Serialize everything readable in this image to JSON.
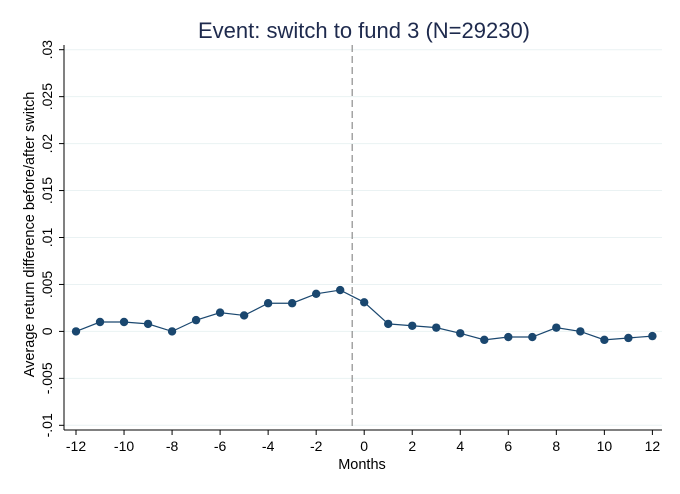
{
  "chart_data": {
    "type": "line",
    "title": "Event: switch to fund 3 (N=29230)",
    "xlabel": "Months",
    "ylabel": "Average return difference before/after switch",
    "xlim": [
      -12.5,
      12.4
    ],
    "ylim": [
      -0.0105,
      0.0305
    ],
    "x_ticks": [
      -12,
      -10,
      -8,
      -6,
      -4,
      -2,
      0,
      2,
      4,
      6,
      8,
      10,
      12
    ],
    "x_tick_labels": [
      "-12",
      "-10",
      "-8",
      "-6",
      "-4",
      "-2",
      "0",
      "2",
      "4",
      "6",
      "8",
      "10",
      "12"
    ],
    "y_ticks": [
      -0.01,
      -0.005,
      0,
      0.005,
      0.01,
      0.015,
      0.02,
      0.025,
      0.03
    ],
    "y_tick_labels": [
      "-.01",
      "-.005",
      "0",
      ".005",
      ".01",
      ".015",
      ".02",
      ".025",
      ".03"
    ],
    "grid": "horizontal",
    "event_line_x": -0.5,
    "series": [
      {
        "x": [
          -12,
          -11,
          -10,
          -9,
          -8,
          -7,
          -6,
          -5,
          -4,
          -3,
          -2,
          -1,
          0,
          1,
          2,
          3,
          4,
          5,
          6,
          7,
          8,
          9,
          10,
          11,
          12
        ],
        "values": [
          0.0,
          0.001,
          0.001,
          0.0008,
          0.0,
          0.0012,
          0.002,
          0.0017,
          0.003,
          0.003,
          0.004,
          0.0044,
          0.0031,
          0.0008,
          0.0006,
          0.0004,
          -0.0002,
          -0.0009,
          -0.0006,
          -0.0006,
          0.0004,
          0.0,
          -0.0009,
          -0.0007,
          -0.0005
        ]
      }
    ],
    "colors": {
      "line": "#1a476f",
      "marker": "#1a476f",
      "grid": "#eaf2f3",
      "axis": "#000000",
      "event_line": "#8c8c8c",
      "title": "#1e2a4d"
    }
  }
}
